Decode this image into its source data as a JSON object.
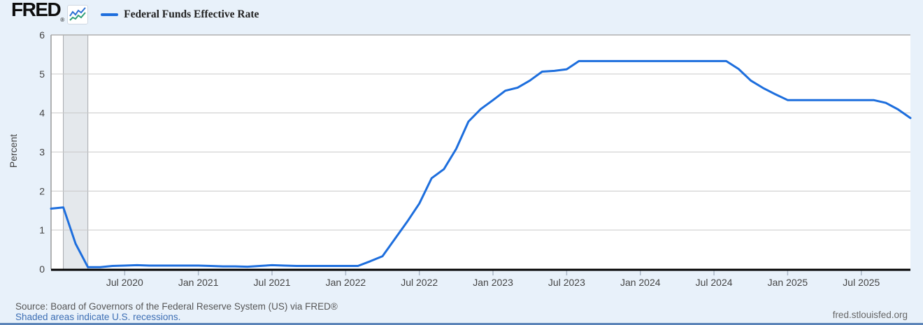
{
  "header": {
    "logo_text": "FRED",
    "logo_registered": "®",
    "legend": {
      "series_label": "Federal Funds Effective Rate"
    }
  },
  "footer": {
    "source_text": "Source: Board of Governors of the Federal Reserve System (US) via FRED®",
    "recession_note": "Shaded areas indicate U.S. recessions.",
    "watermark": "fred.stlouisfed.org"
  },
  "colors": {
    "page_background": "#e8f1fa",
    "plot_background": "#ffffff",
    "series_line": "#1d6edd",
    "gridline": "#c9c9c9",
    "plot_border": "#b0b0b0",
    "axis_line": "#000000",
    "recession_fill": "#e4e8ec",
    "recession_edge": "#a6aaae",
    "tick": "#aab6c6",
    "axis_text": "#444444",
    "link": "#3c6eb4"
  },
  "chart_data": {
    "type": "line",
    "title": "Federal Funds Effective Rate",
    "xlabel": "",
    "ylabel": "Percent",
    "ylim": [
      0,
      6
    ],
    "y_ticks": [
      0,
      1,
      2,
      3,
      4,
      5,
      6
    ],
    "grid": true,
    "legend_position": "top-left",
    "x_start_month": "2020-01",
    "x_end_month": "2025-11",
    "x_ticks": [
      {
        "label": "Jul 2020",
        "month_index": 6
      },
      {
        "label": "Jan 2021",
        "month_index": 12
      },
      {
        "label": "Jul 2021",
        "month_index": 18
      },
      {
        "label": "Jan 2022",
        "month_index": 24
      },
      {
        "label": "Jul 2022",
        "month_index": 30
      },
      {
        "label": "Jan 2023",
        "month_index": 36
      },
      {
        "label": "Jul 2023",
        "month_index": 42
      },
      {
        "label": "Jan 2024",
        "month_index": 48
      },
      {
        "label": "Jul 2024",
        "month_index": 54
      },
      {
        "label": "Jan 2025",
        "month_index": 60
      },
      {
        "label": "Jul 2025",
        "month_index": 66
      }
    ],
    "recession_bands": [
      {
        "from_month": "2020-02",
        "to_month": "2020-04",
        "from_index": 1,
        "to_index": 3
      }
    ],
    "series": [
      {
        "name": "Federal Funds Effective Rate",
        "units": "Percent",
        "frequency": "monthly",
        "first_month": "2020-01",
        "values": [
          1.55,
          1.58,
          0.65,
          0.05,
          0.05,
          0.08,
          0.09,
          0.1,
          0.09,
          0.09,
          0.09,
          0.09,
          0.09,
          0.08,
          0.07,
          0.07,
          0.06,
          0.08,
          0.1,
          0.09,
          0.08,
          0.08,
          0.08,
          0.08,
          0.08,
          0.08,
          0.2,
          0.33,
          0.77,
          1.21,
          1.68,
          2.33,
          2.56,
          3.08,
          3.78,
          4.1,
          4.33,
          4.57,
          4.65,
          4.83,
          5.06,
          5.08,
          5.12,
          5.33,
          5.33,
          5.33,
          5.33,
          5.33,
          5.33,
          5.33,
          5.33,
          5.33,
          5.33,
          5.33,
          5.33,
          5.33,
          5.13,
          4.83,
          4.64,
          4.48,
          4.33,
          4.33,
          4.33,
          4.33,
          4.33,
          4.33,
          4.33,
          4.33,
          4.26,
          4.09,
          3.87
        ]
      }
    ]
  }
}
